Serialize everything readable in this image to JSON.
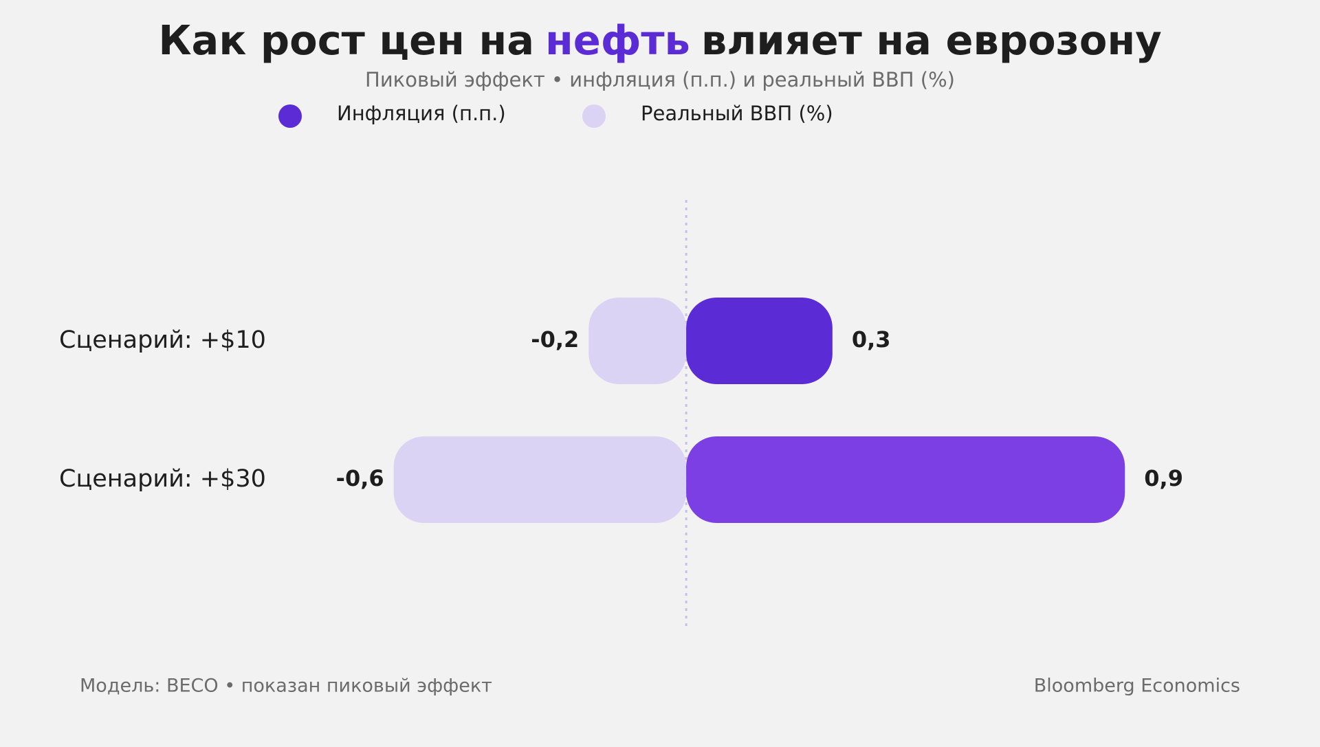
{
  "chart_data": {
    "type": "bar",
    "orientation": "horizontal",
    "title": [
      "Как рост цен на",
      "нефть",
      "влияет на еврозону"
    ],
    "title_highlight_color": "#5b2bd6",
    "subtitle": "Пиковый эффект • инфляция (п.п.) и реальный ВВП (%)",
    "categories": [
      "Сценарий: +$10",
      "Сценарий: +$30"
    ],
    "series": [
      {
        "name": "Инфляция (п.п.)",
        "color": "#5b2bd6",
        "bar_colors": [
          "#5b2bd6",
          "#7b3fe4"
        ],
        "values": [
          0.3,
          0.9
        ],
        "value_labels": [
          "0,3",
          "0,9"
        ]
      },
      {
        "name": "Реальный ВВП (%)",
        "color": "#dad3f4",
        "bar_colors": [
          "#dad3f4",
          "#dad3f4"
        ],
        "values": [
          -0.2,
          -0.6
        ],
        "value_labels": [
          "-0,2",
          "-0,6"
        ]
      }
    ],
    "xlim": [
      -1,
      1.2
    ],
    "footnote": "Модель: BECO • показан пиковый эффект",
    "source": "Bloomberg Economics"
  }
}
